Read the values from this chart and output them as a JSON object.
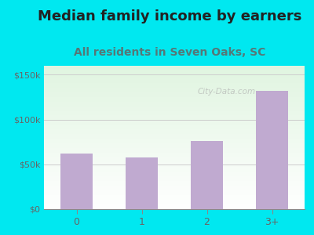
{
  "title": "Median family income by earners",
  "subtitle": "All residents in Seven Oaks, SC",
  "categories": [
    "0",
    "1",
    "2",
    "3+"
  ],
  "values": [
    62000,
    58000,
    76000,
    132000
  ],
  "bar_color": "#c0aad0",
  "title_fontsize": 13,
  "subtitle_fontsize": 10,
  "title_color": "#222222",
  "subtitle_color": "#557777",
  "tick_color": "#666666",
  "background_outer": "#00e8f0",
  "ylim": [
    0,
    160000
  ],
  "yticks": [
    0,
    50000,
    100000,
    150000
  ],
  "ytick_labels": [
    "$0",
    "$50k",
    "$100k",
    "$150k"
  ],
  "watermark": "City-Data.com"
}
